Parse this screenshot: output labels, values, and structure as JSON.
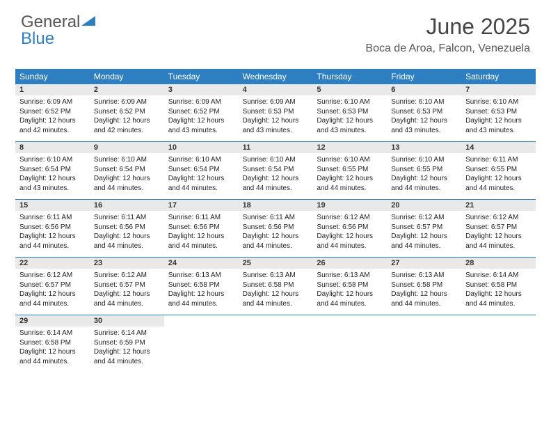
{
  "logo": {
    "text_general": "General",
    "text_blue": "Blue"
  },
  "header": {
    "month_title": "June 2025",
    "location": "Boca de Aroa, Falcon, Venezuela"
  },
  "colors": {
    "header_bg": "#2d7fc1",
    "daynum_bg": "#e9e9e9",
    "week_border": "#2d7fc1",
    "background": "#ffffff"
  },
  "day_labels": [
    "Sunday",
    "Monday",
    "Tuesday",
    "Wednesday",
    "Thursday",
    "Friday",
    "Saturday"
  ],
  "days": [
    {
      "n": "1",
      "sr": "6:09 AM",
      "ss": "6:52 PM",
      "dl": "12 hours and 42 minutes."
    },
    {
      "n": "2",
      "sr": "6:09 AM",
      "ss": "6:52 PM",
      "dl": "12 hours and 42 minutes."
    },
    {
      "n": "3",
      "sr": "6:09 AM",
      "ss": "6:52 PM",
      "dl": "12 hours and 43 minutes."
    },
    {
      "n": "4",
      "sr": "6:09 AM",
      "ss": "6:53 PM",
      "dl": "12 hours and 43 minutes."
    },
    {
      "n": "5",
      "sr": "6:10 AM",
      "ss": "6:53 PM",
      "dl": "12 hours and 43 minutes."
    },
    {
      "n": "6",
      "sr": "6:10 AM",
      "ss": "6:53 PM",
      "dl": "12 hours and 43 minutes."
    },
    {
      "n": "7",
      "sr": "6:10 AM",
      "ss": "6:53 PM",
      "dl": "12 hours and 43 minutes."
    },
    {
      "n": "8",
      "sr": "6:10 AM",
      "ss": "6:54 PM",
      "dl": "12 hours and 43 minutes."
    },
    {
      "n": "9",
      "sr": "6:10 AM",
      "ss": "6:54 PM",
      "dl": "12 hours and 44 minutes."
    },
    {
      "n": "10",
      "sr": "6:10 AM",
      "ss": "6:54 PM",
      "dl": "12 hours and 44 minutes."
    },
    {
      "n": "11",
      "sr": "6:10 AM",
      "ss": "6:54 PM",
      "dl": "12 hours and 44 minutes."
    },
    {
      "n": "12",
      "sr": "6:10 AM",
      "ss": "6:55 PM",
      "dl": "12 hours and 44 minutes."
    },
    {
      "n": "13",
      "sr": "6:10 AM",
      "ss": "6:55 PM",
      "dl": "12 hours and 44 minutes."
    },
    {
      "n": "14",
      "sr": "6:11 AM",
      "ss": "6:55 PM",
      "dl": "12 hours and 44 minutes."
    },
    {
      "n": "15",
      "sr": "6:11 AM",
      "ss": "6:56 PM",
      "dl": "12 hours and 44 minutes."
    },
    {
      "n": "16",
      "sr": "6:11 AM",
      "ss": "6:56 PM",
      "dl": "12 hours and 44 minutes."
    },
    {
      "n": "17",
      "sr": "6:11 AM",
      "ss": "6:56 PM",
      "dl": "12 hours and 44 minutes."
    },
    {
      "n": "18",
      "sr": "6:11 AM",
      "ss": "6:56 PM",
      "dl": "12 hours and 44 minutes."
    },
    {
      "n": "19",
      "sr": "6:12 AM",
      "ss": "6:56 PM",
      "dl": "12 hours and 44 minutes."
    },
    {
      "n": "20",
      "sr": "6:12 AM",
      "ss": "6:57 PM",
      "dl": "12 hours and 44 minutes."
    },
    {
      "n": "21",
      "sr": "6:12 AM",
      "ss": "6:57 PM",
      "dl": "12 hours and 44 minutes."
    },
    {
      "n": "22",
      "sr": "6:12 AM",
      "ss": "6:57 PM",
      "dl": "12 hours and 44 minutes."
    },
    {
      "n": "23",
      "sr": "6:12 AM",
      "ss": "6:57 PM",
      "dl": "12 hours and 44 minutes."
    },
    {
      "n": "24",
      "sr": "6:13 AM",
      "ss": "6:58 PM",
      "dl": "12 hours and 44 minutes."
    },
    {
      "n": "25",
      "sr": "6:13 AM",
      "ss": "6:58 PM",
      "dl": "12 hours and 44 minutes."
    },
    {
      "n": "26",
      "sr": "6:13 AM",
      "ss": "6:58 PM",
      "dl": "12 hours and 44 minutes."
    },
    {
      "n": "27",
      "sr": "6:13 AM",
      "ss": "6:58 PM",
      "dl": "12 hours and 44 minutes."
    },
    {
      "n": "28",
      "sr": "6:14 AM",
      "ss": "6:58 PM",
      "dl": "12 hours and 44 minutes."
    },
    {
      "n": "29",
      "sr": "6:14 AM",
      "ss": "6:58 PM",
      "dl": "12 hours and 44 minutes."
    },
    {
      "n": "30",
      "sr": "6:14 AM",
      "ss": "6:59 PM",
      "dl": "12 hours and 44 minutes."
    }
  ],
  "labels": {
    "sunrise": "Sunrise:",
    "sunset": "Sunset:",
    "daylight": "Daylight:"
  }
}
